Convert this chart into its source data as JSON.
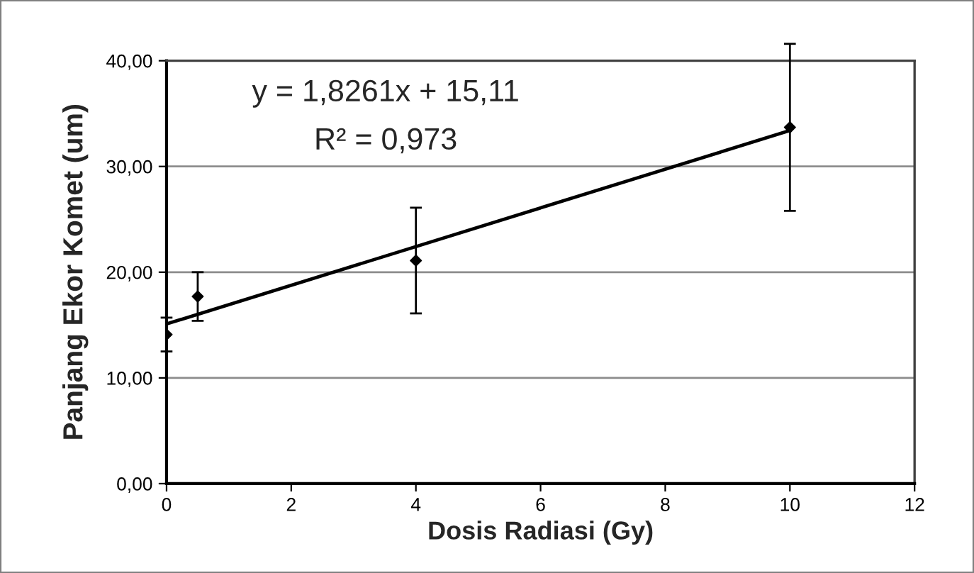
{
  "chart_data": {
    "type": "scatter",
    "xlabel": "Dosis Radiasi (Gy)",
    "ylabel": "Panjang Ekor Komet (um)",
    "annotations": [
      "y = 1,8261x + 15,11",
      "R² = 0,973"
    ],
    "xlim": [
      0,
      12
    ],
    "xticks": [
      0,
      2,
      4,
      6,
      8,
      10,
      12
    ],
    "ylim": [
      0,
      40
    ],
    "yticks": [
      {
        "value": 0,
        "label": "0,00"
      },
      {
        "value": 10,
        "label": "10,00"
      },
      {
        "value": 20,
        "label": "20,00"
      },
      {
        "value": 30,
        "label": "30,00"
      },
      {
        "value": 40,
        "label": "40,00"
      }
    ],
    "grid": "y",
    "series": [
      {
        "color": "#000000",
        "marker": "diamond",
        "x": [
          0,
          0.5,
          4,
          10
        ],
        "values": [
          14.1,
          17.7,
          21.1,
          33.7
        ],
        "errors": [
          1.6,
          2.3,
          5.0,
          7.9
        ]
      },
      {
        "type": "line",
        "color": "#000000",
        "marker": "none",
        "line_style": "solid",
        "x": [
          0,
          10
        ],
        "values": [
          15.1,
          33.4
        ]
      }
    ]
  }
}
